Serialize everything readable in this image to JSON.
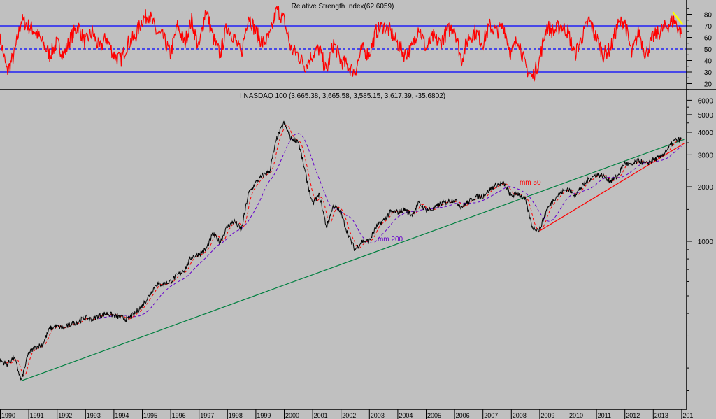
{
  "chart_data": [
    {
      "type": "line",
      "title": "Relative Strength Index(62.6059)",
      "ylim": [
        15,
        88
      ],
      "yticks": [
        20,
        30,
        40,
        50,
        60,
        70,
        80
      ],
      "reference_lines": [
        {
          "value": 70,
          "style": "solid"
        },
        {
          "value": 50,
          "style": "dashed"
        },
        {
          "value": 30,
          "style": "solid"
        }
      ],
      "x_start": 1990,
      "x_step": 0.25,
      "series": [
        {
          "name": "RSI",
          "color": "#ff0000",
          "values": [
            60,
            30,
            45,
            75,
            70,
            65,
            55,
            45,
            55,
            45,
            60,
            70,
            55,
            65,
            50,
            60,
            45,
            40,
            55,
            60,
            75,
            80,
            65,
            60,
            45,
            70,
            55,
            75,
            50,
            85,
            60,
            45,
            70,
            60,
            45,
            80,
            65,
            55,
            60,
            85,
            75,
            50,
            45,
            35,
            45,
            50,
            30,
            55,
            40,
            35,
            30,
            50,
            45,
            65,
            70,
            65,
            55,
            45,
            50,
            70,
            50,
            60,
            55,
            65,
            70,
            40,
            60,
            65,
            55,
            70,
            65,
            70,
            45,
            60,
            35,
            25,
            40,
            70,
            65,
            70,
            65,
            45,
            60,
            75,
            60,
            45,
            50,
            70,
            75,
            45,
            65,
            45,
            60,
            65,
            70,
            75,
            63
          ]
        }
      ],
      "trendline": {
        "color": "#ffff00",
        "from": [
          2013.7,
          82
        ],
        "to": [
          2014.05,
          71
        ]
      }
    },
    {
      "type": "line",
      "title": "I NASDAQ 100 (3,665.38, 3,665.58, 3,585.15, 3,617.39, -35.6802)",
      "yscale": "log",
      "ylim": [
        100,
        7000
      ],
      "yticks": [
        1000,
        2000,
        3000,
        4000,
        5000,
        6000
      ],
      "x_start": 1990,
      "x_step": 0.25,
      "xticks": [
        "1990",
        "1991",
        "1992",
        "1993",
        "1994",
        "1995",
        "1996",
        "1997",
        "1998",
        "1999",
        "2000",
        "2001",
        "2002",
        "2003",
        "2004",
        "2005",
        "2006",
        "2007",
        "2008",
        "2009",
        "2010",
        "2011",
        "2012",
        "2013",
        "201"
      ],
      "series": [
        {
          "name": "NASDAQ 100",
          "color": "#000000",
          "values": [
            220,
            210,
            230,
            170,
            240,
            260,
            270,
            330,
            340,
            330,
            350,
            360,
            380,
            370,
            390,
            400,
            390,
            380,
            370,
            400,
            440,
            500,
            580,
            580,
            600,
            650,
            700,
            820,
            850,
            900,
            1100,
            990,
            1200,
            1300,
            1150,
            1830,
            2100,
            2300,
            2450,
            3700,
            4500,
            3700,
            3600,
            2400,
            1600,
            1800,
            1200,
            1580,
            1450,
            1100,
            900,
            1000,
            1000,
            1200,
            1300,
            1450,
            1450,
            1500,
            1400,
            1620,
            1500,
            1500,
            1600,
            1650,
            1700,
            1550,
            1650,
            1760,
            1770,
            1930,
            2050,
            2080,
            1780,
            1840,
            1700,
            1200,
            1150,
            1480,
            1700,
            1860,
            1950,
            1800,
            2000,
            2200,
            2330,
            2300,
            2150,
            2280,
            2700,
            2620,
            2800,
            2660,
            2820,
            2900,
            3200,
            3590,
            3660
          ]
        },
        {
          "name": "mm 50",
          "color": "#ff0000",
          "style": "dashed"
        },
        {
          "name": "mm 200",
          "color": "#6600cc",
          "style": "dashed",
          "start": 1993.5
        }
      ],
      "trendlines": [
        {
          "color": "#008040",
          "from": [
            1990.75,
            170
          ],
          "to": [
            2014.1,
            3650
          ]
        },
        {
          "color": "#ff0000",
          "from": [
            2009.0,
            1140
          ],
          "to": [
            2014.1,
            3470
          ]
        }
      ],
      "annotations": [
        {
          "text": "mm 50",
          "color": "#ff0000",
          "at": [
            2008.3,
            2050
          ]
        },
        {
          "text": "mm 200",
          "color": "#6600cc",
          "at": [
            2003.3,
            1000
          ]
        }
      ]
    }
  ]
}
